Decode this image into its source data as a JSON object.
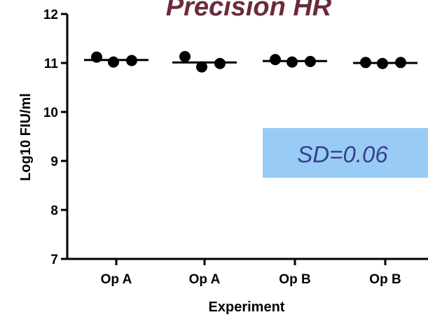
{
  "chart_data": {
    "type": "scatter",
    "title": "Precision HR",
    "xlabel": "Experiment",
    "ylabel": "Log10 FIU/ml",
    "ylim": [
      7,
      12
    ],
    "yticks": [
      "7",
      "8",
      "9",
      "10",
      "11",
      "12"
    ],
    "categories": [
      "Op A",
      "Op A",
      "Op B",
      "Op B"
    ],
    "groups": [
      {
        "points": [
          11.12,
          11.02,
          11.05
        ],
        "mean": 11.06
      },
      {
        "points": [
          11.13,
          10.92,
          10.99
        ],
        "mean": 11.01
      },
      {
        "points": [
          11.07,
          11.02,
          11.03
        ],
        "mean": 11.04
      },
      {
        "points": [
          11.01,
          10.99,
          11.01
        ],
        "mean": 11.0
      }
    ],
    "annotation": "SD=0.06",
    "grid": false,
    "colors": {
      "title": "#6b2b3a",
      "annotation_text": "#3a3f8f",
      "annotation_bg": "#99ccf5",
      "points": "#000000",
      "axis": "#000000"
    }
  }
}
